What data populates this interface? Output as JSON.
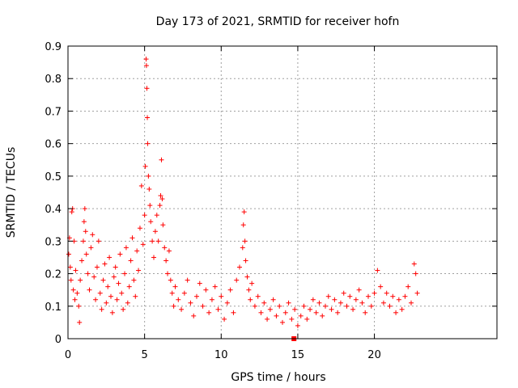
{
  "chart_data": {
    "type": "scatter",
    "title": "Day 173 of 2021, SRMTID for receiver hofn",
    "xlabel": "GPS time / hours",
    "ylabel": "SRMTID / TECUs",
    "xlim": [
      0,
      28
    ],
    "ylim": [
      0,
      0.9
    ],
    "xticks": [
      0,
      5,
      10,
      15,
      20
    ],
    "yticks": [
      0,
      0.1,
      0.2,
      0.3,
      0.4,
      0.5,
      0.6,
      0.7,
      0.8,
      0.9
    ],
    "xtick_labels": [
      "0",
      "5",
      "10",
      "15",
      "20"
    ],
    "ytick_labels": [
      "0",
      "0.1",
      "0.2",
      "0.3",
      "0.4",
      "0.5",
      "0.6",
      "0.7",
      "0.8",
      "0.9"
    ],
    "grid": true,
    "marker": "+",
    "color": "#ff0000",
    "series": [
      {
        "name": "SRMTID",
        "points": [
          [
            0.05,
            0.26
          ],
          [
            0.1,
            0.31
          ],
          [
            0.15,
            0.22
          ],
          [
            0.2,
            0.18
          ],
          [
            0.25,
            0.39
          ],
          [
            0.3,
            0.4
          ],
          [
            0.35,
            0.15
          ],
          [
            0.4,
            0.3
          ],
          [
            0.45,
            0.12
          ],
          [
            0.5,
            0.21
          ],
          [
            0.6,
            0.14
          ],
          [
            0.7,
            0.1
          ],
          [
            0.75,
            0.05
          ],
          [
            0.8,
            0.18
          ],
          [
            0.9,
            0.24
          ],
          [
            1.0,
            0.3
          ],
          [
            1.05,
            0.36
          ],
          [
            1.1,
            0.4
          ],
          [
            1.15,
            0.33
          ],
          [
            1.2,
            0.26
          ],
          [
            1.3,
            0.2
          ],
          [
            1.4,
            0.15
          ],
          [
            1.5,
            0.28
          ],
          [
            1.6,
            0.32
          ],
          [
            1.7,
            0.19
          ],
          [
            1.8,
            0.12
          ],
          [
            1.9,
            0.22
          ],
          [
            2.0,
            0.3
          ],
          [
            2.1,
            0.14
          ],
          [
            2.2,
            0.09
          ],
          [
            2.3,
            0.18
          ],
          [
            2.4,
            0.23
          ],
          [
            2.5,
            0.11
          ],
          [
            2.6,
            0.16
          ],
          [
            2.7,
            0.25
          ],
          [
            2.8,
            0.13
          ],
          [
            2.9,
            0.08
          ],
          [
            3.0,
            0.19
          ],
          [
            3.1,
            0.22
          ],
          [
            3.2,
            0.12
          ],
          [
            3.3,
            0.17
          ],
          [
            3.4,
            0.26
          ],
          [
            3.5,
            0.14
          ],
          [
            3.6,
            0.09
          ],
          [
            3.7,
            0.2
          ],
          [
            3.8,
            0.28
          ],
          [
            3.9,
            0.11
          ],
          [
            4.0,
            0.16
          ],
          [
            4.1,
            0.24
          ],
          [
            4.2,
            0.31
          ],
          [
            4.3,
            0.18
          ],
          [
            4.4,
            0.13
          ],
          [
            4.5,
            0.27
          ],
          [
            4.6,
            0.21
          ],
          [
            4.7,
            0.34
          ],
          [
            4.8,
            0.47
          ],
          [
            4.9,
            0.29
          ],
          [
            5.0,
            0.38
          ],
          [
            5.05,
            0.53
          ],
          [
            5.1,
            0.86
          ],
          [
            5.12,
            0.84
          ],
          [
            5.15,
            0.77
          ],
          [
            5.18,
            0.68
          ],
          [
            5.2,
            0.6
          ],
          [
            5.25,
            0.5
          ],
          [
            5.3,
            0.46
          ],
          [
            5.35,
            0.41
          ],
          [
            5.4,
            0.36
          ],
          [
            5.5,
            0.3
          ],
          [
            5.6,
            0.25
          ],
          [
            5.7,
            0.33
          ],
          [
            5.8,
            0.38
          ],
          [
            5.9,
            0.3
          ],
          [
            6.0,
            0.41
          ],
          [
            6.05,
            0.44
          ],
          [
            6.1,
            0.55
          ],
          [
            6.15,
            0.43
          ],
          [
            6.2,
            0.35
          ],
          [
            6.3,
            0.28
          ],
          [
            6.4,
            0.24
          ],
          [
            6.5,
            0.2
          ],
          [
            6.6,
            0.27
          ],
          [
            6.7,
            0.18
          ],
          [
            6.8,
            0.14
          ],
          [
            6.9,
            0.1
          ],
          [
            7.0,
            0.16
          ],
          [
            7.2,
            0.12
          ],
          [
            7.4,
            0.09
          ],
          [
            7.6,
            0.14
          ],
          [
            7.8,
            0.18
          ],
          [
            8.0,
            0.11
          ],
          [
            8.2,
            0.07
          ],
          [
            8.4,
            0.13
          ],
          [
            8.6,
            0.17
          ],
          [
            8.8,
            0.1
          ],
          [
            9.0,
            0.15
          ],
          [
            9.2,
            0.08
          ],
          [
            9.4,
            0.12
          ],
          [
            9.6,
            0.16
          ],
          [
            9.8,
            0.09
          ],
          [
            10.0,
            0.13
          ],
          [
            10.2,
            0.06
          ],
          [
            10.4,
            0.11
          ],
          [
            10.6,
            0.15
          ],
          [
            10.8,
            0.08
          ],
          [
            11.0,
            0.18
          ],
          [
            11.2,
            0.22
          ],
          [
            11.4,
            0.28
          ],
          [
            11.45,
            0.35
          ],
          [
            11.5,
            0.39
          ],
          [
            11.55,
            0.3
          ],
          [
            11.6,
            0.24
          ],
          [
            11.7,
            0.19
          ],
          [
            11.8,
            0.15
          ],
          [
            11.9,
            0.12
          ],
          [
            12.0,
            0.17
          ],
          [
            12.2,
            0.1
          ],
          [
            12.4,
            0.13
          ],
          [
            12.6,
            0.08
          ],
          [
            12.8,
            0.11
          ],
          [
            13.0,
            0.06
          ],
          [
            13.2,
            0.09
          ],
          [
            13.4,
            0.12
          ],
          [
            13.6,
            0.07
          ],
          [
            13.8,
            0.1
          ],
          [
            14.0,
            0.05
          ],
          [
            14.2,
            0.08
          ],
          [
            14.4,
            0.11
          ],
          [
            14.6,
            0.06
          ],
          [
            14.8,
            0.09
          ],
          [
            15.0,
            0.04
          ],
          [
            15.2,
            0.07
          ],
          [
            15.4,
            0.1
          ],
          [
            15.6,
            0.06
          ],
          [
            15.8,
            0.09
          ],
          [
            16.0,
            0.12
          ],
          [
            16.2,
            0.08
          ],
          [
            16.4,
            0.11
          ],
          [
            16.6,
            0.07
          ],
          [
            16.8,
            0.1
          ],
          [
            17.0,
            0.13
          ],
          [
            17.2,
            0.09
          ],
          [
            17.4,
            0.12
          ],
          [
            17.6,
            0.08
          ],
          [
            17.8,
            0.11
          ],
          [
            18.0,
            0.14
          ],
          [
            18.2,
            0.1
          ],
          [
            18.4,
            0.13
          ],
          [
            18.6,
            0.09
          ],
          [
            18.8,
            0.12
          ],
          [
            19.0,
            0.15
          ],
          [
            19.2,
            0.11
          ],
          [
            19.4,
            0.08
          ],
          [
            19.6,
            0.13
          ],
          [
            19.8,
            0.1
          ],
          [
            20.0,
            0.14
          ],
          [
            20.2,
            0.21
          ],
          [
            20.4,
            0.16
          ],
          [
            20.6,
            0.11
          ],
          [
            20.8,
            0.14
          ],
          [
            21.0,
            0.1
          ],
          [
            21.2,
            0.13
          ],
          [
            21.4,
            0.08
          ],
          [
            21.6,
            0.12
          ],
          [
            21.8,
            0.09
          ],
          [
            22.0,
            0.13
          ],
          [
            22.2,
            0.16
          ],
          [
            22.4,
            0.11
          ],
          [
            22.6,
            0.23
          ],
          [
            22.7,
            0.2
          ],
          [
            22.8,
            0.14
          ]
        ]
      }
    ],
    "marker_special": {
      "x": 14.75,
      "y": 0.0,
      "shape": "square"
    }
  }
}
